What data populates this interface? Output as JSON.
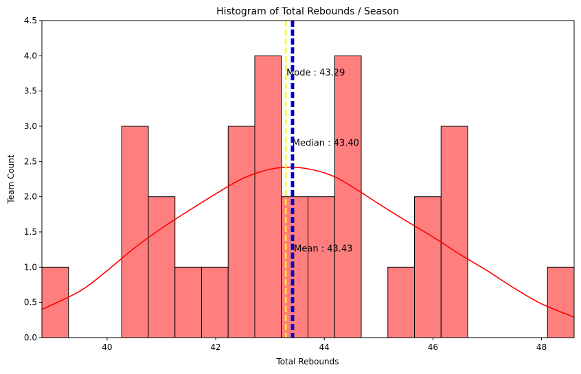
{
  "chart_data": {
    "type": "bar",
    "title": "Histogram of Total Rebounds / Season",
    "xlabel": "Total Rebounds",
    "ylabel": "Team Count",
    "xlim": [
      38.8,
      48.6
    ],
    "ylim": [
      0,
      4.5
    ],
    "xticks": [
      40,
      42,
      44,
      46,
      48
    ],
    "yticks": [
      0.0,
      0.5,
      1.0,
      1.5,
      2.0,
      2.5,
      3.0,
      3.5,
      4.0,
      4.5
    ],
    "grid": false,
    "colors": {
      "bar_fill": "#ff7f7f",
      "bar_edge": "#000000",
      "kde": "#ff0000",
      "mode": "#ffff00",
      "median": "#0000ff",
      "mean": "#00008b"
    },
    "bins": {
      "start": 38.8,
      "width": 0.49,
      "counts": [
        1,
        0,
        0,
        3,
        2,
        1,
        1,
        3,
        4,
        2,
        2,
        4,
        0,
        1,
        2,
        3,
        0,
        0,
        0,
        1
      ]
    },
    "kde": {
      "x": [
        38.8,
        39.5,
        40.0,
        40.5,
        41.0,
        41.5,
        42.0,
        42.5,
        43.0,
        43.4,
        43.8,
        44.2,
        44.6,
        45.0,
        45.5,
        46.0,
        46.5,
        47.0,
        47.5,
        48.0,
        48.6
      ],
      "y": [
        0.4,
        0.66,
        0.95,
        1.27,
        1.55,
        1.8,
        2.04,
        2.26,
        2.39,
        2.42,
        2.38,
        2.28,
        2.1,
        1.9,
        1.66,
        1.43,
        1.18,
        0.95,
        0.7,
        0.48,
        0.29
      ]
    },
    "lines": [
      {
        "name": "Mode",
        "value": 43.29,
        "label": "Mode : 43.29",
        "label_y": 3.76
      },
      {
        "name": "Median",
        "value": 43.4,
        "label": "Median : 43.40",
        "label_y": 2.76
      },
      {
        "name": "Mean",
        "value": 43.43,
        "label": "Mean : 43.43",
        "label_y": 1.26
      }
    ]
  }
}
